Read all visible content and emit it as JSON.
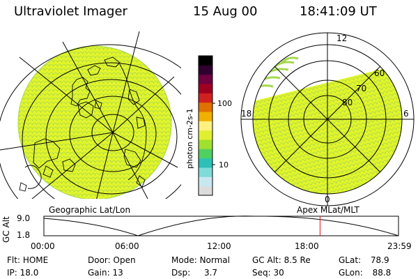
{
  "header": {
    "instrument": "Ultraviolet Imager",
    "date": "15 Aug 00",
    "time": "18:41:09 UT"
  },
  "colors": {
    "image_fill": "#e3f52a",
    "image_texture": "#a6d84e",
    "grid": "#000000",
    "marker": "#e01010"
  },
  "colorbar": {
    "label": "photon cm-2s-1",
    "ticks": [
      {
        "value": 100,
        "label": "100"
      },
      {
        "value": 10,
        "label": "10"
      }
    ],
    "stops": [
      "#dcdcdc",
      "#c8e8f0",
      "#7fdcd8",
      "#2cc0b8",
      "#4fd060",
      "#9fe030",
      "#e0f030",
      "#fff080",
      "#f0b000",
      "#e07000",
      "#d02020",
      "#a00020",
      "#700040",
      "#300030",
      "#000000"
    ]
  },
  "left_map": {
    "label": "Geographic Lat/Lon"
  },
  "right_map": {
    "label": "Apex MLat/MLT",
    "mlt_labels": {
      "top": "12",
      "left": "18",
      "right": "6",
      "bottom": "0"
    },
    "lat_labels": [
      "60",
      "70",
      "80"
    ]
  },
  "altitude_plot": {
    "ylabel": "GC Alt",
    "yticks": [
      "9.0",
      "1.8"
    ],
    "xticks": [
      "00:00",
      "06:00",
      "12:00",
      "18:00",
      "23:59"
    ],
    "current_time_hours": 18.69
  },
  "status": {
    "row1": [
      {
        "label": "Flt:",
        "value": "HOME"
      },
      {
        "label": "Door:",
        "value": "Open"
      },
      {
        "label": "Mode:",
        "value": "Normal"
      },
      {
        "label": "GC Alt:",
        "value": "8.5 Re"
      },
      {
        "label": "GLat:",
        "value": "78.9"
      }
    ],
    "row2": [
      {
        "label": "IP:",
        "value": "18.0"
      },
      {
        "label": "Gain:",
        "value": "13"
      },
      {
        "label": "Dsp:",
        "value": "3.7"
      },
      {
        "label": "Seq:",
        "value": "30"
      },
      {
        "label": "GLon:",
        "value": "88.8"
      }
    ]
  }
}
